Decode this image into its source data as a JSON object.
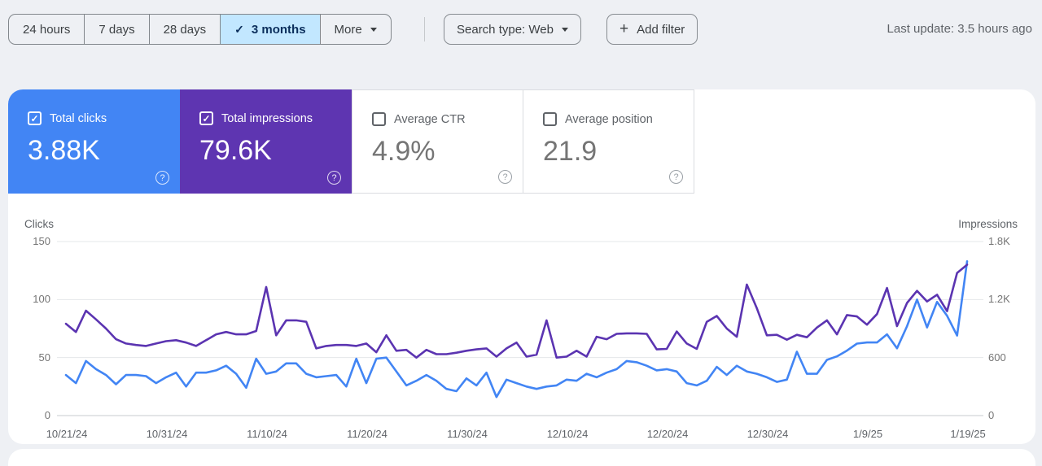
{
  "toolbar": {
    "date_ranges": [
      {
        "label": "24 hours",
        "selected": false
      },
      {
        "label": "7 days",
        "selected": false
      },
      {
        "label": "28 days",
        "selected": false
      },
      {
        "label": "3 months",
        "selected": true
      }
    ],
    "check_glyph": "✓",
    "more_label": "More",
    "search_type_label": "Search type: Web",
    "add_filter_label": "Add filter",
    "plus_glyph": "+",
    "last_update": "Last update: 3.5 hours ago"
  },
  "cards": [
    {
      "label": "Total clicks",
      "value": "3.88K",
      "selected": true,
      "color": "#4285f4"
    },
    {
      "label": "Total impressions",
      "value": "79.6K",
      "selected": true,
      "color": "#5e35b1"
    },
    {
      "label": "Average CTR",
      "value": "4.9%",
      "selected": false
    },
    {
      "label": "Average position",
      "value": "21.9",
      "selected": false
    }
  ],
  "help_glyph": "?",
  "chart_data": {
    "type": "line",
    "grid": true,
    "legend_position": "none",
    "left_axis": {
      "title": "Clicks",
      "max": 150,
      "ticks": [
        {
          "label": "150",
          "value": 150
        },
        {
          "label": "100",
          "value": 100
        },
        {
          "label": "50",
          "value": 50
        },
        {
          "label": "0",
          "value": 0
        }
      ]
    },
    "right_axis": {
      "title": "Impressions",
      "max": 1800,
      "ticks": [
        {
          "label": "1.8K",
          "value": 1800
        },
        {
          "label": "1.2K",
          "value": 1200
        },
        {
          "label": "600",
          "value": 600
        },
        {
          "label": "0",
          "value": 0
        }
      ]
    },
    "x_tick_labels": [
      "10/21/24",
      "10/31/24",
      "11/10/24",
      "11/20/24",
      "11/30/24",
      "12/10/24",
      "12/20/24",
      "12/30/24",
      "1/9/25",
      "1/19/25"
    ],
    "x_start_date": "10/21/24",
    "x_end_date": "1/19/25",
    "series": [
      {
        "name": "Clicks",
        "axis": "left",
        "color": "#4285f4",
        "values": [
          35,
          28,
          47,
          40,
          35,
          27,
          35,
          35,
          34,
          28,
          33,
          37,
          25,
          37,
          37,
          39,
          43,
          36,
          24,
          49,
          36,
          38,
          45,
          45,
          36,
          33,
          34,
          35,
          25,
          49,
          28,
          49,
          50,
          38,
          26,
          30,
          35,
          30,
          23,
          21,
          32,
          26,
          37,
          16,
          31,
          28,
          25,
          23,
          25,
          26,
          31,
          30,
          36,
          33,
          37,
          40,
          47,
          46,
          43,
          39,
          40,
          38,
          28,
          26,
          30,
          42,
          35,
          43,
          38,
          36,
          33,
          29,
          31,
          55,
          36,
          36,
          48,
          51,
          56,
          62,
          63,
          63,
          70,
          58,
          77,
          100,
          76,
          98,
          86,
          69,
          133
        ]
      },
      {
        "name": "Impressions",
        "axis": "right",
        "color": "#5b34b1",
        "values": [
          950,
          865,
          1085,
          995,
          900,
          790,
          745,
          730,
          720,
          745,
          770,
          780,
          755,
          720,
          780,
          840,
          865,
          840,
          840,
          875,
          1330,
          830,
          985,
          985,
          970,
          695,
          720,
          730,
          730,
          720,
          745,
          655,
          830,
          670,
          680,
          600,
          680,
          635,
          635,
          650,
          670,
          685,
          695,
          610,
          695,
          755,
          610,
          630,
          985,
          600,
          610,
          670,
          610,
          815,
          790,
          845,
          850,
          850,
          845,
          685,
          690,
          870,
          745,
          690,
          970,
          1030,
          900,
          815,
          1355,
          1110,
          830,
          835,
          785,
          835,
          810,
          910,
          985,
          840,
          1040,
          1025,
          940,
          1050,
          1320,
          925,
          1165,
          1290,
          1180,
          1250,
          1080,
          1475,
          1560
        ]
      }
    ]
  }
}
